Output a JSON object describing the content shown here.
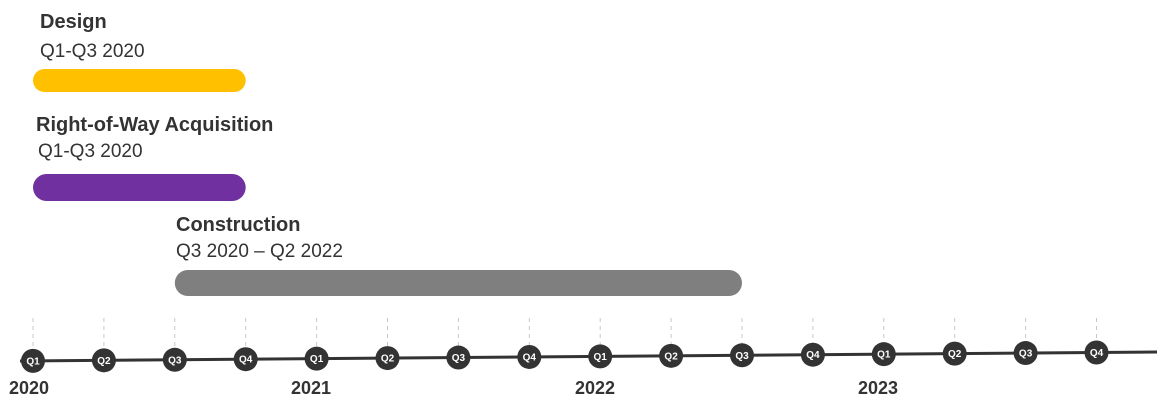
{
  "chart_data": {
    "type": "gantt",
    "years": [
      "2020",
      "2021",
      "2022",
      "2023"
    ],
    "quarters": [
      "Q1",
      "Q2",
      "Q3",
      "Q4"
    ],
    "tasks": [
      {
        "name": "Design",
        "period": "Q1-Q3 2020",
        "start_quarter": 0,
        "end_quarter": 3,
        "color": "#FFC000"
      },
      {
        "name": "Right-of-Way Acquisition",
        "period": "Q1-Q3 2020",
        "start_quarter": 0,
        "end_quarter": 3,
        "color": "#7030A0"
      },
      {
        "name": "Construction",
        "period": "Q3 2020 – Q2 2022",
        "start_quarter": 2,
        "end_quarter": 10,
        "color": "#7F7F7F"
      }
    ],
    "axis_color": "#333333",
    "marker_color": "#333333",
    "grid": "dashed vertical"
  }
}
